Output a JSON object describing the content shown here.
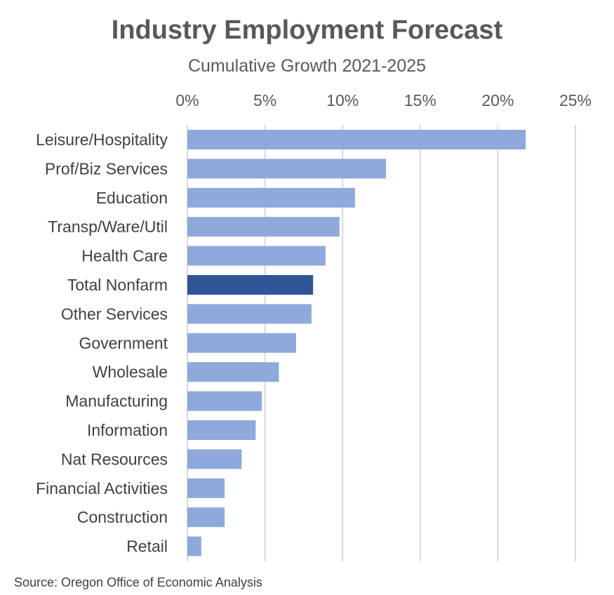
{
  "chart_data": {
    "type": "bar",
    "orientation": "horizontal",
    "title": "Industry Employment Forecast",
    "subtitle": "Cumulative Growth 2021-2025",
    "xaxis_position": "top",
    "xlim": [
      0,
      25
    ],
    "xticks": [
      0,
      5,
      10,
      15,
      20,
      25
    ],
    "xtick_labels": [
      "0%",
      "5%",
      "10%",
      "15%",
      "20%",
      "25%"
    ],
    "grid": true,
    "categories": [
      "Leisure/Hospitality",
      "Prof/Biz Services",
      "Education",
      "Transp/Ware/Util",
      "Health Care",
      "Total Nonfarm",
      "Other Services",
      "Government",
      "Wholesale",
      "Manufacturing",
      "Information",
      "Nat Resources",
      "Financial Activities",
      "Construction",
      "Retail"
    ],
    "values": [
      21.8,
      12.8,
      10.8,
      9.8,
      8.9,
      8.1,
      8.0,
      7.0,
      5.9,
      4.8,
      4.4,
      3.5,
      2.4,
      2.4,
      0.9
    ],
    "highlight": "Total Nonfarm",
    "bar_color": "#8eaadc",
    "highlight_color": "#2f5597",
    "grid_color": "#d9d9d9",
    "source": "Source: Oregon Office of Economic Analysis"
  }
}
